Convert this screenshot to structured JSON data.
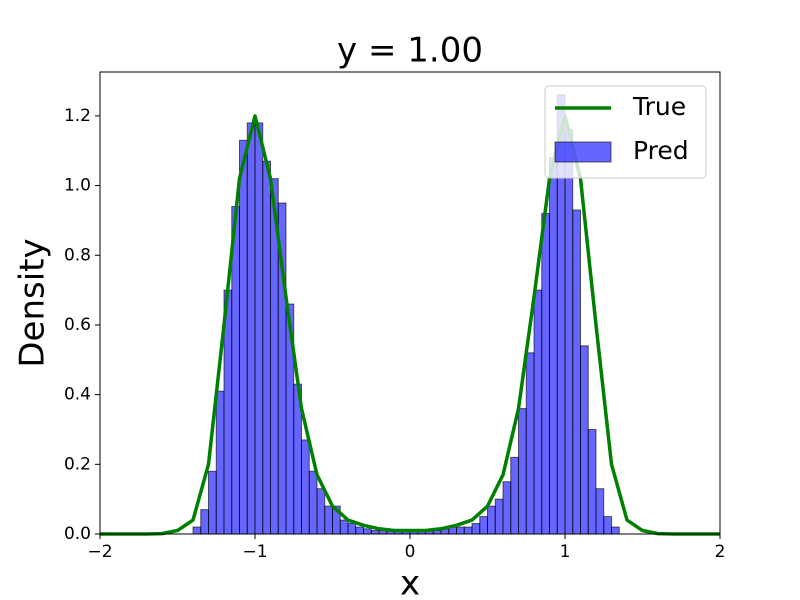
{
  "chart_data": {
    "type": "histogram-line",
    "title": "y = 1.00",
    "xlabel": "x",
    "ylabel": "Density",
    "xlim": [
      -2,
      2
    ],
    "ylim": [
      0,
      1.326
    ],
    "xticks": [
      {
        "value": -2,
        "label": "−2"
      },
      {
        "value": -1,
        "label": "−1"
      },
      0,
      1,
      2
    ],
    "yticks": [
      {
        "value": 0,
        "label": "0.0"
      },
      {
        "value": 0.2,
        "label": "0.2"
      },
      {
        "value": 0.4,
        "label": "0.4"
      },
      {
        "value": 0.6,
        "label": "0.6"
      },
      {
        "value": 0.8,
        "label": "0.8"
      },
      {
        "value": 1.0,
        "label": "1.0"
      },
      {
        "value": 1.2,
        "label": "1.2"
      }
    ],
    "legend": "upper right",
    "histogram": {
      "name": "Pred",
      "color": "#0000ff",
      "bins": [
        -1.4,
        -1.35,
        -1.3,
        -1.25,
        -1.2,
        -1.15,
        -1.1,
        -1.05,
        -1.0,
        -0.95,
        -0.9,
        -0.85,
        -0.8,
        -0.75,
        -0.7,
        -0.65,
        -0.6,
        -0.55,
        -0.5,
        -0.45,
        -0.4,
        -0.35,
        -0.3,
        -0.25,
        -0.2,
        -0.15,
        -0.1,
        -0.05,
        0,
        0.05,
        0.1,
        0.15,
        0.2,
        0.25,
        0.3,
        0.35,
        0.4,
        0.45,
        0.5,
        0.55,
        0.6,
        0.65,
        0.7,
        0.75,
        0.8,
        0.85,
        0.9,
        0.95,
        1.0,
        1.05,
        1.1,
        1.15,
        1.2,
        1.25,
        1.3,
        1.35,
        1.4
      ],
      "counts": [
        0.02,
        0.07,
        0.18,
        0.41,
        0.7,
        0.94,
        1.13,
        1.18,
        1.18,
        1.07,
        1.02,
        0.95,
        0.66,
        0.43,
        0.27,
        0.18,
        0.13,
        0.08,
        0.08,
        0.04,
        0.03,
        0.02,
        0.015,
        0.01,
        0.01,
        0.01,
        0.01,
        0.01,
        0.01,
        0.01,
        0.01,
        0.01,
        0.015,
        0.02,
        0.02,
        0.02,
        0.03,
        0.05,
        0.08,
        0.1,
        0.15,
        0.22,
        0.36,
        0.52,
        0.7,
        0.92,
        1.08,
        1.26,
        1.16,
        0.93,
        0.54,
        0.3,
        0.13,
        0.05,
        0.02,
        0.0
      ]
    },
    "line": {
      "name": "True",
      "color": "#008000",
      "x": [
        -2,
        -1.9,
        -1.8,
        -1.7,
        -1.6,
        -1.5,
        -1.4,
        -1.3,
        -1.2,
        -1.1,
        -1.0,
        -0.9,
        -0.8,
        -0.7,
        -0.6,
        -0.5,
        -0.4,
        -0.3,
        -0.2,
        -0.1,
        0,
        0.1,
        0.2,
        0.3,
        0.4,
        0.5,
        0.6,
        0.7,
        0.8,
        0.9,
        1.0,
        1.1,
        1.2,
        1.3,
        1.4,
        1.5,
        1.6,
        1.7,
        1.8,
        1.9,
        2
      ],
      "values": [
        0,
        0,
        0,
        0,
        0.001,
        0.01,
        0.04,
        0.2,
        0.6,
        1.02,
        1.2,
        1.02,
        0.68,
        0.36,
        0.17,
        0.08,
        0.04,
        0.025,
        0.015,
        0.01,
        0.01,
        0.01,
        0.015,
        0.025,
        0.04,
        0.08,
        0.17,
        0.36,
        0.68,
        1.02,
        1.2,
        1.02,
        0.6,
        0.2,
        0.04,
        0.01,
        0.001,
        0,
        0,
        0,
        0
      ]
    }
  }
}
